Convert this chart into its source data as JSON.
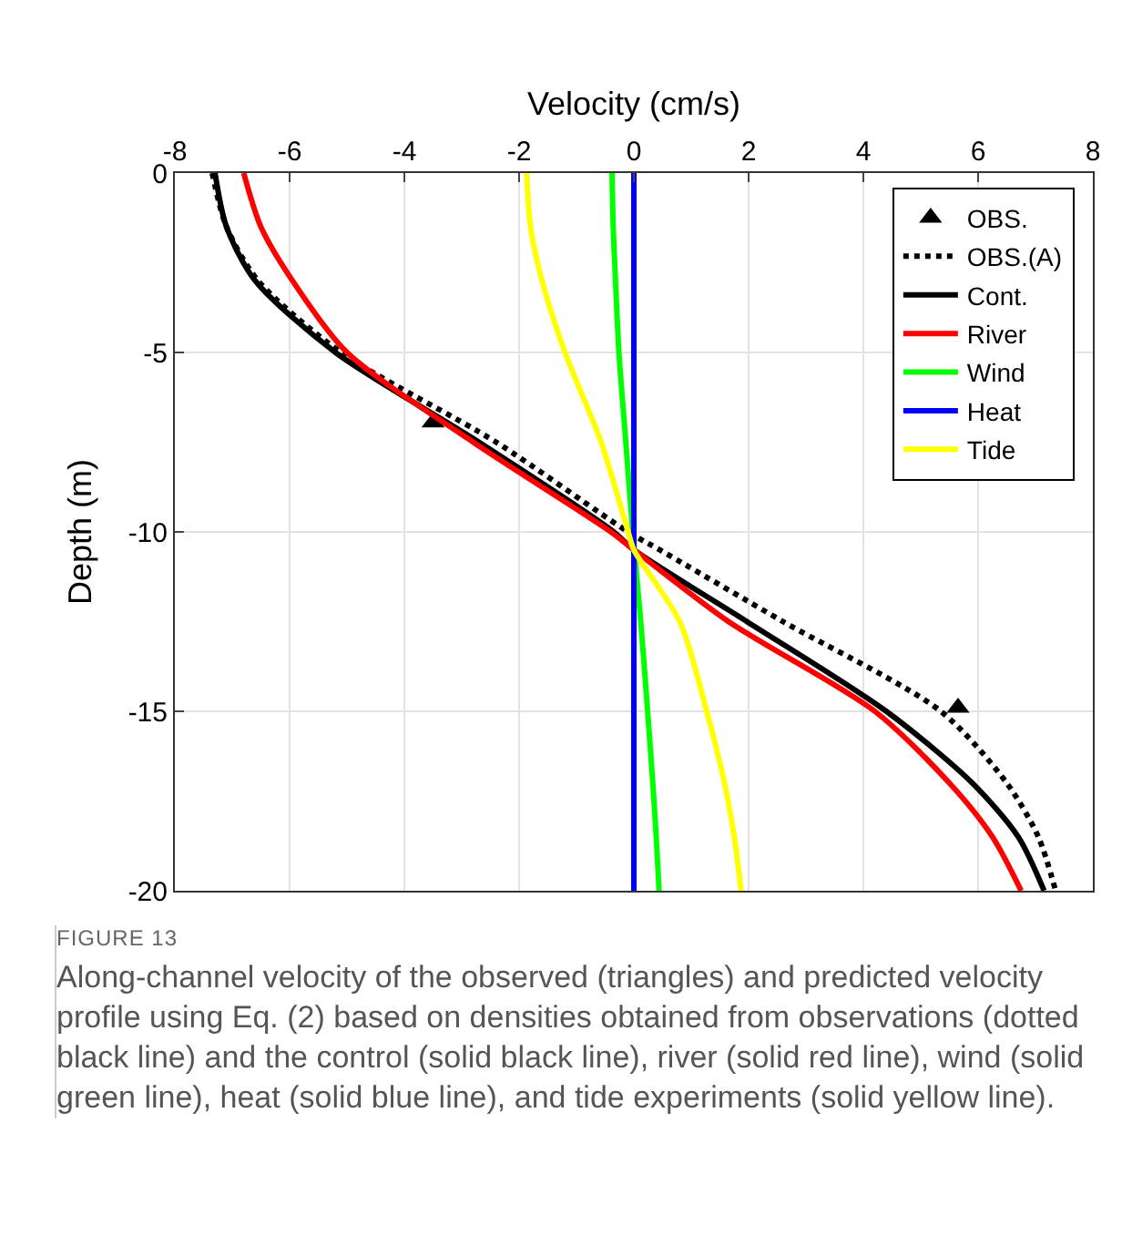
{
  "chart_data": {
    "type": "line",
    "xlabel": "Velocity (cm/s)",
    "ylabel": "Depth (m)",
    "xlim": [
      -8,
      8
    ],
    "xticks": [
      -8,
      -6,
      -4,
      -2,
      0,
      2,
      4,
      6,
      8
    ],
    "ylim": [
      -20,
      0
    ],
    "yticks": [
      -20,
      -15,
      -10,
      -5,
      0
    ],
    "grid": true,
    "legend": "top right",
    "series": [
      {
        "name": "OBS.",
        "type": "scatter",
        "marker": "triangle",
        "color": "#000000",
        "x": [
          -3.5,
          5.65
        ],
        "values": [
          -6.95,
          -14.9
        ]
      },
      {
        "name": "OBS.(A)",
        "type": "line",
        "line_style": "dotted",
        "color": "#000000",
        "x": [
          -7.35,
          -7.1,
          -6.55,
          -5.1,
          -2.4,
          -0.1,
          0.45,
          2.6,
          5.35,
          6.5,
          7.05,
          7.35
        ],
        "values": [
          0,
          -1.5,
          -3,
          -5,
          -7.5,
          -10,
          -10.5,
          -12.5,
          -15,
          -17,
          -18.5,
          -20
        ]
      },
      {
        "name": "Cont.",
        "type": "line",
        "line_style": "solid",
        "color": "#000000",
        "x": [
          -7.3,
          -7.1,
          -6.6,
          -5.2,
          -2.7,
          -0.35,
          0,
          1.97,
          4.4,
          5.9,
          6.7,
          7.15
        ],
        "values": [
          0,
          -1.5,
          -3,
          -5,
          -7.5,
          -10,
          -10.5,
          -12.5,
          -15,
          -17,
          -18.5,
          -20
        ]
      },
      {
        "name": "River",
        "type": "line",
        "line_style": "solid",
        "color": "#ff0000",
        "x": [
          -6.8,
          -6.5,
          -5.95,
          -5.0,
          -2.8,
          -0.4,
          0,
          1.65,
          4.2,
          5.5,
          6.25,
          6.75
        ],
        "values": [
          0,
          -1.5,
          -3,
          -5,
          -7.5,
          -10,
          -10.5,
          -12.5,
          -15,
          -17,
          -18.5,
          -20
        ]
      },
      {
        "name": "Wind",
        "type": "line",
        "line_style": "solid",
        "color": "#00ff00",
        "x": [
          -0.38,
          -0.36,
          -0.32,
          -0.26,
          -0.14,
          -0.02,
          0.12,
          0.24,
          0.33,
          0.39,
          0.44
        ],
        "values": [
          0,
          -1.5,
          -3,
          -5,
          -7.5,
          -10,
          -12.5,
          -15,
          -17,
          -18.5,
          -20
        ]
      },
      {
        "name": "Heat",
        "type": "line",
        "line_style": "solid",
        "color": "#0000ff",
        "x": [
          0,
          0,
          0,
          0,
          0
        ],
        "values": [
          0,
          -5,
          -10,
          -15,
          -20
        ]
      },
      {
        "name": "Tide",
        "type": "line",
        "line_style": "solid",
        "color": "#ffff00",
        "x": [
          -1.87,
          -1.8,
          -1.6,
          -1.2,
          -0.57,
          -0.1,
          0,
          0.8,
          1.27,
          1.58,
          1.75,
          1.87
        ],
        "values": [
          0,
          -1.5,
          -3,
          -5,
          -7.5,
          -10,
          -10.5,
          -12.5,
          -15,
          -17,
          -18.5,
          -20
        ]
      }
    ],
    "annotations": [
      "FIGURE 13",
      "Along-channel velocity of the observed (triangles) and predicted velocity profile using Eq. (2) based on densities obtained from observations (dotted black line) and the control (solid black line), river (solid red line), wind (solid green line), heat (solid blue line), and tide experiments (solid yellow line)."
    ]
  }
}
